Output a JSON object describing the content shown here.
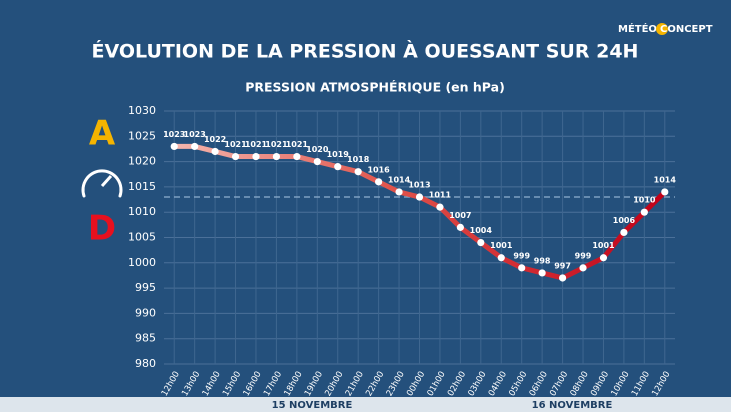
{
  "chart_data": {
    "type": "line",
    "title": "ÉVOLUTION DE LA PRESSION À OUESSANT SUR 24H",
    "subtitle": "PRESSION ATMOSPHÉRIQUE  (en hPa)",
    "logo": [
      "MÉTÉO",
      "CONCEPT"
    ],
    "side_labels": [
      "A",
      "D"
    ],
    "date_labels": [
      "15 NOVEMBRE",
      "16 NOVEMBRE"
    ],
    "categories": [
      "12h00",
      "13h00",
      "14h00",
      "15h00",
      "16h00",
      "17h00",
      "18h00",
      "19h00",
      "20h00",
      "21h00",
      "22h00",
      "23h00",
      "00h00",
      "01h00",
      "02h00",
      "03h00",
      "04h00",
      "05h00",
      "06h00",
      "07h00",
      "08h00",
      "09h00",
      "10h00",
      "11h00",
      "12h00"
    ],
    "values": [
      1023,
      1023,
      1022,
      1021,
      1021,
      1021,
      1021,
      1020,
      1019,
      1018,
      1016,
      1014,
      1013,
      1011,
      1007,
      1004,
      1001,
      999,
      998,
      997,
      999,
      1001,
      1006,
      1010,
      1014
    ],
    "color": "#c8102e",
    "reference_line": 1013,
    "ylim": [
      980,
      1030
    ],
    "yticks": [
      980,
      985,
      990,
      995,
      1000,
      1005,
      1010,
      1015,
      1020,
      1025,
      1030
    ],
    "grid": true
  }
}
